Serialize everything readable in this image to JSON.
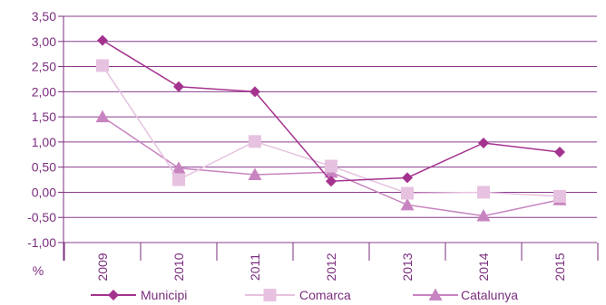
{
  "chart_data": {
    "type": "line",
    "title": "",
    "ylabel": "%",
    "xlabel": "",
    "categories": [
      "2009",
      "2010",
      "2011",
      "2012",
      "2013",
      "2014",
      "2015"
    ],
    "ylim": [
      -1.0,
      3.5
    ],
    "ytick_step": 0.5,
    "yticks": [
      "-1,00",
      "-0,50",
      "0,00",
      "0,50",
      "1,00",
      "1,50",
      "2,00",
      "2,50",
      "3,00",
      "3,50"
    ],
    "grid": true,
    "legend_position": "bottom",
    "series": [
      {
        "name": "Municipi",
        "marker": "diamond",
        "color": "#a4338f",
        "values": [
          3.02,
          2.1,
          2.0,
          0.22,
          0.29,
          0.98,
          0.8
        ]
      },
      {
        "name": "Comarca",
        "marker": "square",
        "color": "#e6c2e0",
        "values": [
          2.52,
          0.25,
          1.01,
          0.52,
          -0.02,
          0.0,
          -0.08
        ]
      },
      {
        "name": "Catalunya",
        "marker": "triangle",
        "color": "#c884c0",
        "values": [
          1.5,
          0.48,
          0.35,
          0.4,
          -0.25,
          -0.47,
          -0.15
        ]
      }
    ],
    "axis_color": "#7b2d7e",
    "grid_color": "#8a3d8f"
  }
}
